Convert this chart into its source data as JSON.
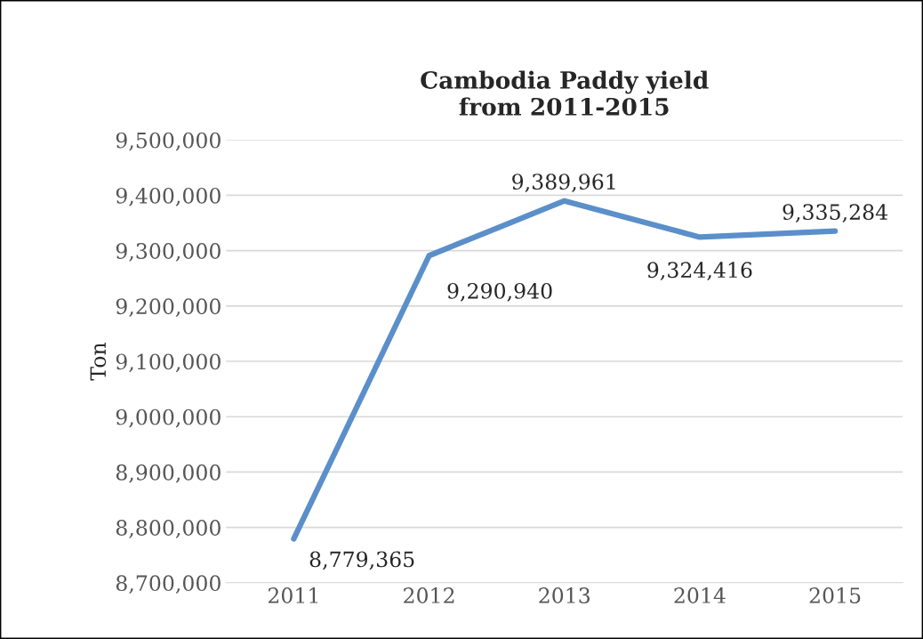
{
  "chart_data": {
    "type": "line",
    "title": "Cambodia Paddy yield\nfrom 2011-2015",
    "ylabel": "Ton",
    "categories": [
      "2011",
      "2012",
      "2013",
      "2014",
      "2015"
    ],
    "series": [
      {
        "color": "#5b8fc9",
        "values": [
          8779365,
          9290940,
          9389961,
          9324416,
          9335284
        ],
        "value_labels": [
          "8,779,365",
          "9,290,940",
          "9,389,961",
          "9,324,416",
          "9,335,284"
        ]
      }
    ],
    "ylim": [
      8700000,
      9500000
    ],
    "yticks": [
      {
        "value": 8700000,
        "label": "8,700,000"
      },
      {
        "value": 8800000,
        "label": "8,800,000"
      },
      {
        "value": 8900000,
        "label": "8,900,000"
      },
      {
        "value": 9000000,
        "label": "9,000,000"
      },
      {
        "value": 9100000,
        "label": "9,100,000"
      },
      {
        "value": 9200000,
        "label": "9,200,000"
      },
      {
        "value": 9300000,
        "label": "9,300,000"
      },
      {
        "value": 9400000,
        "label": "9,400,000"
      },
      {
        "value": 9500000,
        "label": "9,500,000"
      }
    ],
    "grid": "y",
    "line_style": "solid",
    "marker": "none",
    "legend": false
  }
}
